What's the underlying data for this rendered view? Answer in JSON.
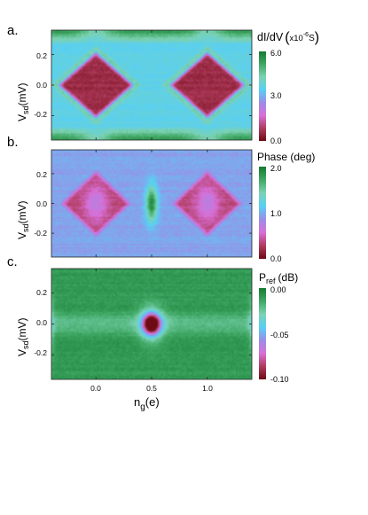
{
  "chart_data": [
    {
      "type": "heatmap",
      "panel_label": "a.",
      "ylabel": "V",
      "ylabel_sub": "sd",
      "ylabel_unit": "(mV)",
      "x_ticks": [
        "0.0",
        "0.5",
        "1.0"
      ],
      "y_ticks": [
        "0.2",
        "0.0",
        "-0.2"
      ],
      "xlim": [
        -0.4,
        1.4
      ],
      "ylim": [
        -0.36,
        0.36
      ],
      "colorbar": {
        "title_main": "dI/dV",
        "title_unit": "x10",
        "title_exp": "-6",
        "title_tail": "S",
        "range": [
          0.0,
          6.0
        ],
        "ticks": [
          "6.0",
          "3.0",
          "0.0"
        ]
      },
      "features": {
        "diamond_centers": [
          0.0,
          1.0
        ],
        "diamond_halfwidth_ng": 0.36,
        "diamond_halfheight_mV": 0.23,
        "inside_value": 0.6,
        "background_value": 3.6,
        "high_value": 5.6
      }
    },
    {
      "type": "heatmap",
      "panel_label": "b.",
      "ylabel": "V",
      "ylabel_sub": "sd",
      "ylabel_unit": "(mV)",
      "x_ticks": [
        "0.0",
        "0.5",
        "1.0"
      ],
      "y_ticks": [
        "0.2",
        "0.0",
        "-0.2"
      ],
      "xlim": [
        -0.4,
        1.4
      ],
      "ylim": [
        -0.36,
        0.36
      ],
      "colorbar": {
        "title_main": "Phase (deg)",
        "range": [
          0.0,
          2.0
        ],
        "ticks": [
          "2.0",
          "1.0",
          "0.0"
        ]
      },
      "features": {
        "diamond_centers": [
          0.0,
          1.0
        ],
        "diamond_halfwidth_ng": 0.34,
        "diamond_halfheight_mV": 0.24,
        "inside_value": 0.35,
        "background_value": 0.95,
        "peak_ng": 0.5,
        "peak_value": 1.9
      }
    },
    {
      "type": "heatmap",
      "panel_label": "c.",
      "ylabel": "V",
      "ylabel_sub": "sd",
      "ylabel_unit": "(mV)",
      "xlabel": "n",
      "xlabel_sub": "g",
      "xlabel_unit": "(e)",
      "x_ticks": [
        "0.0",
        "0.5",
        "1.0"
      ],
      "y_ticks": [
        "0.2",
        "0.0",
        "-0.2"
      ],
      "xlim": [
        -0.4,
        1.4
      ],
      "ylim": [
        -0.36,
        0.36
      ],
      "colorbar": {
        "title_main": "P",
        "title_sub": "ref",
        "title_tail": "(dB)",
        "range": [
          -0.1,
          0.0
        ],
        "ticks": [
          "0.00",
          "-0.05",
          "-0.10"
        ]
      },
      "features": {
        "background_value": -0.01,
        "dip_ng": 0.5,
        "dip_value": -0.1
      }
    }
  ],
  "colors": {
    "scale": [
      "#6e0a14",
      "#b03c5e",
      "#d870d8",
      "#9a8ee8",
      "#58d0f4",
      "#7cd2b2",
      "#3fa864",
      "#167a32"
    ]
  }
}
